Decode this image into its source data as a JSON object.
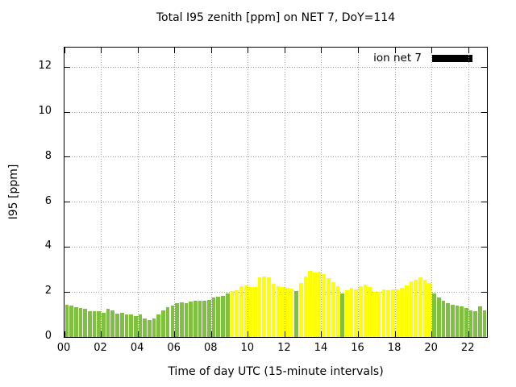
{
  "chart_data": {
    "type": "bar",
    "title": "Total I95 zenith [ppm] on NET 7, DoY=114",
    "xlabel": "Time of day UTC (15-minute intervals)",
    "ylabel": "I95 [ppm]",
    "grid": true,
    "legend_position": "top-right-inside",
    "legend": [
      {
        "label": "ion net 7",
        "swatch_color": "#000000"
      }
    ],
    "x_tick_labels": [
      "00",
      "02",
      "04",
      "06",
      "08",
      "10",
      "12",
      "14",
      "16",
      "18",
      "20",
      "22"
    ],
    "x_tick_hours": [
      0,
      2,
      4,
      6,
      8,
      10,
      12,
      14,
      16,
      18,
      20,
      22
    ],
    "xlim_hours": [
      0,
      23
    ],
    "y_tick_labels": [
      "0",
      "2",
      "4",
      "6",
      "8",
      "10",
      "12"
    ],
    "y_tick_values": [
      0,
      2,
      4,
      6,
      8,
      10,
      12
    ],
    "ylim": [
      0,
      12.87
    ],
    "interval_minutes": 15,
    "start_time": "00:00",
    "series": [
      {
        "name": "ion net 7",
        "values": [
          1.43,
          1.4,
          1.34,
          1.29,
          1.25,
          1.15,
          1.13,
          1.14,
          1.08,
          1.25,
          1.19,
          1.05,
          1.07,
          1.02,
          0.99,
          0.95,
          0.99,
          0.81,
          0.75,
          0.81,
          0.99,
          1.19,
          1.31,
          1.4,
          1.5,
          1.55,
          1.52,
          1.57,
          1.6,
          1.63,
          1.62,
          1.64,
          1.76,
          1.79,
          1.83,
          1.95,
          2.06,
          2.09,
          2.26,
          2.3,
          2.23,
          2.21,
          2.65,
          2.68,
          2.65,
          2.37,
          2.25,
          2.21,
          2.19,
          2.15,
          2.04,
          2.39,
          2.69,
          2.93,
          2.87,
          2.9,
          2.79,
          2.63,
          2.45,
          2.27,
          1.92,
          2.08,
          2.2,
          2.12,
          2.27,
          2.32,
          2.24,
          2.0,
          2.0,
          2.12,
          2.08,
          2.12,
          2.12,
          2.2,
          2.29,
          2.47,
          2.55,
          2.65,
          2.56,
          2.4,
          1.93,
          1.77,
          1.63,
          1.51,
          1.45,
          1.39,
          1.37,
          1.3,
          1.18,
          1.13,
          1.37,
          1.19
        ],
        "bar_colors": "ggggggggggggggggggggggggggggggggggggyyyyyyyyyyyyyygyyyyyyyyygyyyyyyyyyyyyyyyyyyygggggggggggg",
        "palette": {
          "g": "#7ec13e",
          "y": "#ffff00"
        }
      }
    ],
    "colors": {
      "grid": "#9c9c9c",
      "border": "#000000",
      "background": "#ffffff",
      "text": "#000000"
    }
  }
}
